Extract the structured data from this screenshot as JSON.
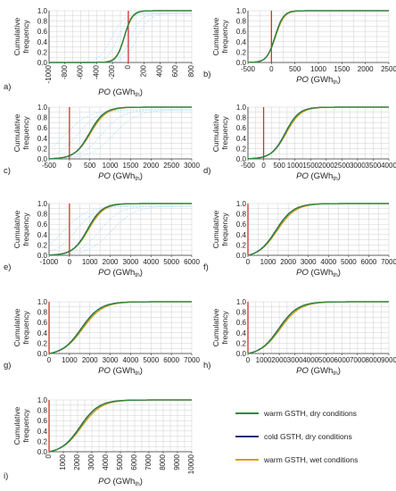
{
  "chart_data": [
    {
      "panel": "a)",
      "type": "line",
      "xlabel": {
        "main": "PO",
        "unit": " (GWh",
        "sub": "th",
        "close": ")"
      },
      "ylabel": [
        "Cumulative",
        "frequency"
      ],
      "xlim": [
        -1000,
        800
      ],
      "xticks": [
        -1000,
        -800,
        -600,
        -400,
        -200,
        0,
        200,
        400,
        600,
        800
      ],
      "xtick_rotate": true,
      "ylim": [
        0,
        1.0
      ],
      "yticks": [
        0,
        0.2,
        0.4,
        0.6,
        0.8,
        1.0
      ],
      "ref_line_x": 0,
      "median": -50,
      "spread": 90,
      "shift": 0,
      "faint_curves": true
    },
    {
      "panel": "b)",
      "type": "line",
      "xlabel": {
        "main": "PO",
        "unit": " (GWh",
        "sub": "th",
        "close": ")"
      },
      "ylabel": [
        "Cumulative",
        "frequency"
      ],
      "xlim": [
        -500,
        2500
      ],
      "xticks": [
        -500,
        0,
        500,
        1000,
        1500,
        2000,
        2500
      ],
      "xtick_rotate": false,
      "ylim": [
        0,
        1.0
      ],
      "yticks": [
        0,
        0.2,
        0.4,
        0.6,
        0.8,
        1.0
      ],
      "ref_line_x": 0,
      "median": 80,
      "spread": 160,
      "shift": 8,
      "faint_curves": false
    },
    {
      "panel": "c)",
      "type": "line",
      "xlabel": {
        "main": "PO",
        "unit": " (GWh",
        "sub": "th",
        "close": ")"
      },
      "ylabel": [
        "Cumulative",
        "frequency"
      ],
      "xlim": [
        -500,
        3000
      ],
      "xticks": [
        -500,
        0,
        500,
        1000,
        1500,
        2000,
        2500,
        3000
      ],
      "xtick_rotate": false,
      "ylim": [
        0,
        1.0
      ],
      "yticks": [
        0,
        0.2,
        0.4,
        0.6,
        0.8,
        1.0
      ],
      "ref_line_x": 0,
      "median": 500,
      "spread": 330,
      "shift": 20,
      "faint_curves": true
    },
    {
      "panel": "d)",
      "type": "line",
      "xlabel": {
        "main": "PO",
        "unit": " (GWh",
        "sub": "th",
        "close": ")"
      },
      "ylabel": [
        "Cumulative",
        "frequency"
      ],
      "xlim": [
        -500,
        4000
      ],
      "xticks": [
        -500,
        0,
        500,
        1000,
        1500,
        2000,
        2500,
        3000,
        3500,
        4000
      ],
      "xtick_rotate": false,
      "ylim": [
        0,
        1.0
      ],
      "yticks": [
        0,
        0.2,
        0.4,
        0.6,
        0.8,
        1.0
      ],
      "ref_line_x": 0,
      "median": 700,
      "spread": 400,
      "shift": 25,
      "faint_curves": false
    },
    {
      "panel": "e)",
      "type": "line",
      "xlabel": {
        "main": "PO",
        "unit": " (GWh",
        "sub": "th",
        "close": ")"
      },
      "ylabel": [
        "Cumulative",
        "frequency"
      ],
      "xlim": [
        -1000,
        6000
      ],
      "xticks": [
        -1000,
        0,
        1000,
        2000,
        3000,
        4000,
        5000,
        6000
      ],
      "xtick_rotate": false,
      "ylim": [
        0,
        1.0
      ],
      "yticks": [
        0,
        0.2,
        0.4,
        0.6,
        0.8,
        1.0
      ],
      "ref_line_x": 0,
      "median": 900,
      "spread": 650,
      "shift": 40,
      "faint_curves": true
    },
    {
      "panel": "f)",
      "type": "line",
      "xlabel": {
        "main": "PO",
        "unit": " (GWh",
        "sub": "th",
        "close": ")"
      },
      "ylabel": [
        "Cumulative",
        "frequency"
      ],
      "xlim": [
        0,
        7000
      ],
      "xticks": [
        0,
        1000,
        2000,
        3000,
        4000,
        5000,
        6000,
        7000
      ],
      "xtick_rotate": false,
      "ylim": [
        0,
        1.0
      ],
      "yticks": [
        0,
        0.2,
        0.4,
        0.6,
        0.8,
        1.0
      ],
      "ref_line_x": 0,
      "median": 1400,
      "spread": 800,
      "shift": 50,
      "faint_curves": false
    },
    {
      "panel": "g)",
      "type": "line",
      "xlabel": {
        "main": "PO",
        "unit": " (GWh",
        "sub": "th",
        "close": ")"
      },
      "ylabel": [
        "Cumulative",
        "frequency"
      ],
      "xlim": [
        0,
        7000
      ],
      "xticks": [
        0,
        1000,
        2000,
        3000,
        4000,
        5000,
        6000,
        7000
      ],
      "xtick_rotate": false,
      "ylim": [
        0,
        1.0
      ],
      "yticks": [
        0,
        0.2,
        0.4,
        0.6,
        0.8,
        1.0
      ],
      "ref_line_x": 0,
      "median": 1600,
      "spread": 850,
      "shift": 55,
      "faint_curves": false
    },
    {
      "panel": "h)",
      "type": "line",
      "xlabel": {
        "main": "PO",
        "unit": " (GWh",
        "sub": "th",
        "close": ")"
      },
      "ylabel": [
        "Cumulative",
        "frequency"
      ],
      "xlim": [
        0,
        9000
      ],
      "xticks": [
        0,
        1000,
        2000,
        3000,
        4000,
        5000,
        6000,
        7000,
        8000,
        9000
      ],
      "xtick_rotate": false,
      "ylim": [
        0,
        1.0
      ],
      "yticks": [
        0,
        0.2,
        0.4,
        0.6,
        0.8,
        1.0
      ],
      "ref_line_x": 0,
      "median": 2000,
      "spread": 1100,
      "shift": 70,
      "faint_curves": false
    },
    {
      "panel": "i)",
      "type": "line",
      "xlabel": {
        "main": "PO",
        "unit": " (GWh",
        "sub": "th",
        "close": ")"
      },
      "ylabel": [
        "Cumulative",
        "frequency"
      ],
      "xlim": [
        0,
        10000
      ],
      "xticks": [
        0,
        1000,
        2000,
        3000,
        4000,
        5000,
        6000,
        7000,
        8000,
        9000,
        10000
      ],
      "xtick_rotate": true,
      "ylim": [
        0,
        1.0
      ],
      "yticks": [
        0,
        0.2,
        0.4,
        0.6,
        0.8,
        1.0
      ],
      "ref_line_x": 0,
      "median": 2200,
      "spread": 1200,
      "shift": 80,
      "faint_curves": false
    }
  ],
  "legend": {
    "placement": "bottom-right",
    "items": [
      {
        "label": "warm GSTH, dry conditions",
        "color": "#2e8b3a"
      },
      {
        "label": "cold GSTH, dry conditions",
        "color": "#1f2a6e"
      },
      {
        "label": "warm GSTH, wet conditions",
        "color": "#d4a020"
      }
    ]
  },
  "colors": {
    "reference_line": "#d0312d",
    "grid": "#cfcfcf",
    "faint": "#a8d8ff",
    "axis": "#333333"
  }
}
